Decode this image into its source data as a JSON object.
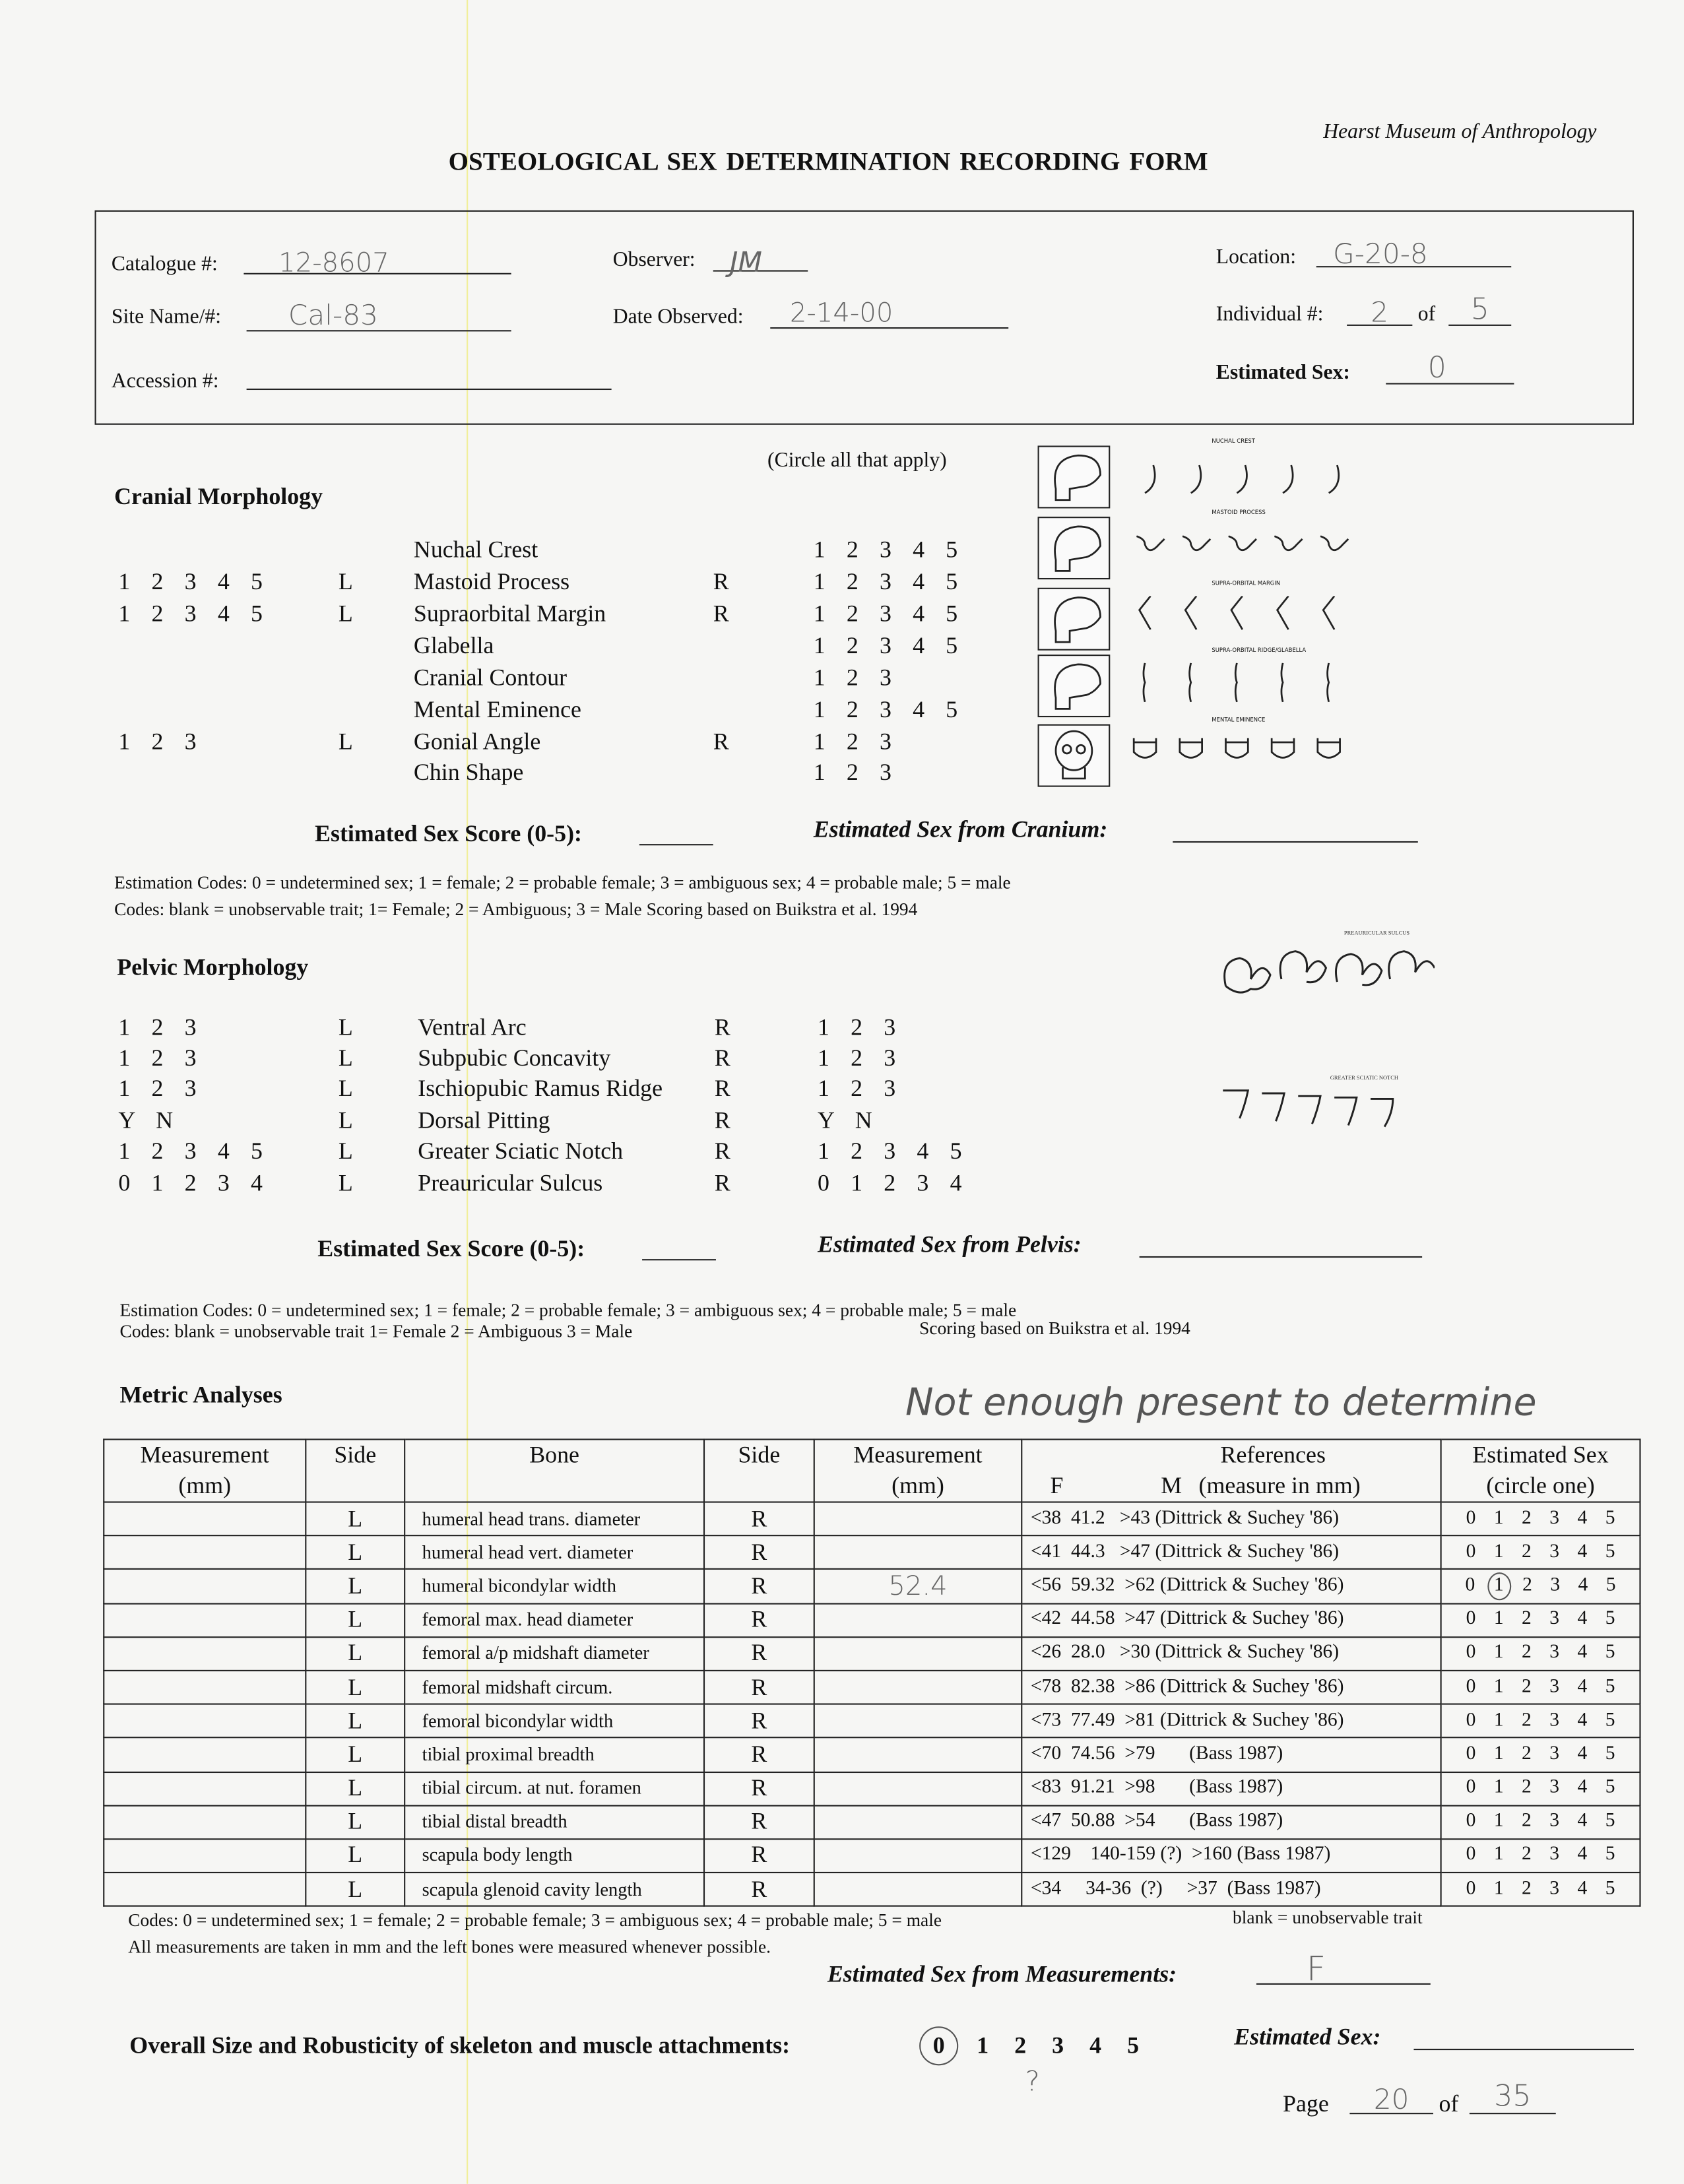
{
  "museum": "Hearst Museum of Anthropology",
  "title": "OSTEOLOGICAL  SEX  DETERMINATION RECORDING FORM",
  "header": {
    "catalogue_label": "Catalogue #:",
    "catalogue_value": "12-8607",
    "site_label": "Site Name/#:",
    "site_value": "Cal-83",
    "accession_label": "Accession #:",
    "accession_value": "",
    "observer_label": "Observer:",
    "observer_value": "JM",
    "date_label": "Date Observed:",
    "date_value": "2-14-00",
    "location_label": "Location:",
    "location_value": "G-20-8",
    "individual_label": "Individual #:",
    "individual_value": "2",
    "of_label": "of",
    "individual_total": "5",
    "est_sex_label": "Estimated Sex:",
    "est_sex_value": "0"
  },
  "cranial": {
    "heading": "Cranial Morphology",
    "instruction": "(Circle all that apply)",
    "rows": [
      {
        "left": "",
        "l": "",
        "trait": "Nuchal Crest",
        "r": "",
        "right": "1 2 3 4 5"
      },
      {
        "left": "1 2 3 4 5",
        "l": "L",
        "trait": "Mastoid Process",
        "r": "R",
        "right": "1 2 3 4 5"
      },
      {
        "left": "1 2 3 4 5",
        "l": "L",
        "trait": "Supraorbital Margin",
        "r": "R",
        "right": "1 2 3 4 5"
      },
      {
        "left": "",
        "l": "",
        "trait": "Glabella",
        "r": "",
        "right": "1 2 3 4 5"
      },
      {
        "left": "",
        "l": "",
        "trait": "Cranial Contour",
        "r": "",
        "right": "1 2 3"
      },
      {
        "left": "",
        "l": "",
        "trait": "Mental Eminence",
        "r": "",
        "right": "1 2 3 4 5"
      },
      {
        "left": "1 2 3",
        "l": "L",
        "trait": "Gonial Angle",
        "r": "R",
        "right": "1 2 3"
      },
      {
        "left": "",
        "l": "",
        "trait": "Chin Shape",
        "r": "",
        "right": "1 2 3"
      }
    ],
    "diagram_labels": [
      "NUCHAL CREST",
      "MASTOID PROCESS",
      "SUPRA-ORBITAL MARGIN",
      "SUPRA-ORBITAL RIDGE/GLABELLA",
      "MENTAL EMINENCE"
    ],
    "score_label": "Estimated Sex Score (0-5):",
    "score_value": "",
    "from_label": "Estimated Sex from Cranium:",
    "from_value": "",
    "codes1": "Estimation Codes:  0 = undetermined sex;  1 = female;  2 = probable female;  3 = ambiguous sex;  4 = probable male; 5 = male",
    "codes2": "Codes:  blank = unobservable trait;  1= Female;  2 = Ambiguous;  3 = Male      Scoring based on Buikstra et al. 1994"
  },
  "pelvic": {
    "heading": "Pelvic Morphology",
    "rows": [
      {
        "left": "1 2 3",
        "l": "L",
        "trait": "Ventral Arc",
        "r": "R",
        "right": "1 2 3"
      },
      {
        "left": "1 2 3",
        "l": "L",
        "trait": "Subpubic Concavity",
        "r": "R",
        "right": "1 2 3"
      },
      {
        "left": "1 2 3",
        "l": "L",
        "trait": "Ischiopubic Ramus Ridge",
        "r": "R",
        "right": "1 2 3"
      },
      {
        "left": "Y   N",
        "l": "L",
        "trait": "Dorsal Pitting",
        "r": "R",
        "right": "Y   N"
      },
      {
        "left": "1 2 3 4 5",
        "l": "L",
        "trait": "Greater Sciatic Notch",
        "r": "R",
        "right": "1 2 3 4 5"
      },
      {
        "left": "0 1 2 3 4",
        "l": "L",
        "trait": "Preauricular Sulcus",
        "r": "R",
        "right": "0 1 2 3 4"
      }
    ],
    "diagram_labels": [
      "PREAURICULAR SULCUS",
      "GREATER SCIATIC NOTCH"
    ],
    "score_label": "Estimated Sex Score (0-5):",
    "score_value": "",
    "from_label": "Estimated Sex from Pelvis:",
    "from_value": "",
    "codes1": "Estimation Codes:  0 = undetermined sex;  1 = female;  2 = probable female;  3 = ambiguous sex;  4 = probable male; 5 = male",
    "codes2a": "Codes:  blank = unobservable trait  1= Female  2 = Ambiguous  3 = Male",
    "codes2b": "Scoring based on Buikstra et al. 1994"
  },
  "metric": {
    "heading": "Metric Analyses",
    "handwritten_note": "Not enough present to determine",
    "columns": {
      "meas_l": "Measurement (mm)",
      "side_l": "Side",
      "bone": "Bone",
      "side_r": "Side",
      "meas_r": "Measurement (mm)",
      "refs": "References",
      "refs_f": "F",
      "refs_m": "M",
      "refs_unit": "(measure in mm)",
      "est": "Estimated Sex",
      "est_sub": "(circle one)"
    },
    "rows": [
      {
        "side_l": "L",
        "bone": "humeral head trans. diameter",
        "side_r": "R",
        "meas": "",
        "ref": "<38  41.2   >43 (Dittrick & Suchey '86)",
        "circled": null
      },
      {
        "side_l": "L",
        "bone": "humeral head vert. diameter",
        "side_r": "R",
        "meas": "",
        "ref": "<41  44.3   >47 (Dittrick & Suchey '86)",
        "circled": null
      },
      {
        "side_l": "L",
        "bone": "humeral bicondylar width",
        "side_r": "R",
        "meas": "52.4",
        "ref": "<56  59.32  >62 (Dittrick & Suchey '86)",
        "circled": 1
      },
      {
        "side_l": "L",
        "bone": "femoral max. head diameter",
        "side_r": "R",
        "meas": "",
        "ref": "<42  44.58  >47 (Dittrick & Suchey '86)",
        "circled": null
      },
      {
        "side_l": "L",
        "bone": "femoral a/p midshaft diameter",
        "side_r": "R",
        "meas": "",
        "ref": "<26  28.0   >30 (Dittrick & Suchey '86)",
        "circled": null
      },
      {
        "side_l": "L",
        "bone": "femoral midshaft circum.",
        "side_r": "R",
        "meas": "",
        "ref": "<78  82.38  >86 (Dittrick & Suchey '86)",
        "circled": null
      },
      {
        "side_l": "L",
        "bone": "femoral bicondylar width",
        "side_r": "R",
        "meas": "",
        "ref": "<73  77.49  >81 (Dittrick & Suchey '86)",
        "circled": null
      },
      {
        "side_l": "L",
        "bone": "tibial proximal breadth",
        "side_r": "R",
        "meas": "",
        "ref": "<70  74.56  >79       (Bass 1987)",
        "circled": null
      },
      {
        "side_l": "L",
        "bone": "tibial circum. at nut. foramen",
        "side_r": "R",
        "meas": "",
        "ref": "<83  91.21  >98       (Bass 1987)",
        "circled": null
      },
      {
        "side_l": "L",
        "bone": "tibial distal breadth",
        "side_r": "R",
        "meas": "",
        "ref": "<47  50.88  >54       (Bass 1987)",
        "circled": null
      },
      {
        "side_l": "L",
        "bone": "scapula body length",
        "side_r": "R",
        "meas": "",
        "ref": "<129    140-159 (?)  >160 (Bass 1987)",
        "circled": null
      },
      {
        "side_l": "L",
        "bone": "scapula glenoid cavity length",
        "side_r": "R",
        "meas": "",
        "ref": "<34     34-36  (?)     >37  (Bass 1987)",
        "circled": null
      }
    ],
    "sex_options": [
      "0",
      "1",
      "2",
      "3",
      "4",
      "5"
    ],
    "codes1": "Codes: 0 = undetermined sex;  1 = female;  2 = probable female;  3 = ambiguous sex;  4 = probable male; 5 = male",
    "codes1b": "blank = unobservable trait",
    "codes2": "All measurements are taken in mm and the left bones were measured whenever possible.",
    "from_label": "Estimated Sex from Measurements:",
    "from_value": "F"
  },
  "overall": {
    "label": "Overall Size and Robusticity of skeleton and muscle attachments:",
    "options": [
      "0",
      "1",
      "2",
      "3",
      "4",
      "5"
    ],
    "circled": 0,
    "note": "?",
    "est_label": "Estimated Sex:",
    "est_value": ""
  },
  "page": {
    "label": "Page",
    "current": "20",
    "of": "of",
    "total": "35"
  }
}
